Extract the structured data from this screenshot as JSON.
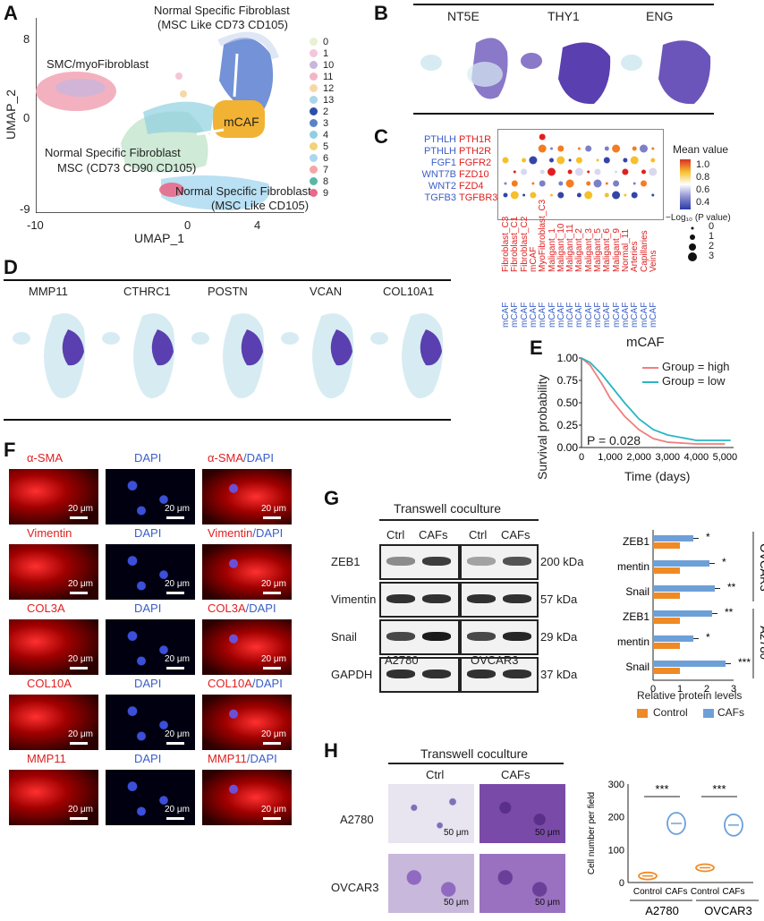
{
  "panels": {
    "A": "A",
    "B": "B",
    "C": "C",
    "D": "D",
    "E": "E",
    "F": "F",
    "G": "G",
    "H": "H"
  },
  "A": {
    "xlabel": "UMAP_1",
    "ylabel": "UMAP_2",
    "xticks": [
      "-10",
      "0",
      "4"
    ],
    "yticks": [
      "8",
      "0",
      "-9"
    ],
    "labels": {
      "smc": "SMC/myoFibroblast",
      "nsf1a": "Normal Specific Fibroblast",
      "nsf1b": "(MSC Like CD73 CD105)",
      "mcaf": "mCAF",
      "nsm1": "Normal Specific Fibroblast",
      "nsm2": "MSC (CD73 CD90 CD105)",
      "nsf3a": "Normal Specific Fibroblast",
      "nsf3b": "(MSC Like CD105)"
    },
    "legend": [
      "0",
      "1",
      "10",
      "11",
      "12",
      "13",
      "2",
      "3",
      "4",
      "5",
      "6",
      "7",
      "8",
      "9"
    ],
    "legend_colors": [
      "#e8f0d8",
      "#f4c6d8",
      "#c9b6dc",
      "#f2b6c6",
      "#f6d8a8",
      "#a9d6e8",
      "#2e4fa8",
      "#5b82c8",
      "#8fd0e0",
      "#f2d27a",
      "#a8d8f0",
      "#f4a6a6",
      "#58b8a8",
      "#e86a8a"
    ]
  },
  "B": {
    "genes": [
      "NT5E",
      "THY1",
      "ENG"
    ]
  },
  "C": {
    "ligands": [
      "PTHLH",
      "PTHLH",
      "FGF1",
      "WNT7B",
      "WNT2",
      "TGFB3"
    ],
    "receptors": [
      "PTH1R",
      "PTH2R",
      "FGFR2",
      "FZD10",
      "FZD4",
      "TGFBR3"
    ],
    "columns": [
      "Fibroblast_C3",
      "Fibroblast_C1",
      "Fibroblast_C2",
      "mCAF",
      "MyoFibroblast_C3",
      "Maligant_1",
      "Maligant_10",
      "Maligant_11",
      "Maligant_2",
      "Maligant_3",
      "Maligant_5",
      "Maligant_6",
      "Maligant_9",
      "Normal_11",
      "Arteries",
      "Capillaries",
      "Veins"
    ],
    "col_prefix": "mCAF",
    "legend_title": "Mean value",
    "legend_ticks": [
      "1.0",
      "0.8",
      "0.6",
      "0.4"
    ],
    "pval_title": "−Log₁₀ (P value)",
    "pval_ticks": [
      "0",
      "1",
      "2",
      "3"
    ]
  },
  "D": {
    "genes": [
      "MMP11",
      "CTHRC1",
      "POSTN",
      "VCAN",
      "COL10A1"
    ]
  },
  "E": {
    "title": "mCAF",
    "ylabel": "Survival probability",
    "xlabel": "Time (days)",
    "yticks": [
      "1.00",
      "0.75",
      "0.50",
      "0.25",
      "0.00"
    ],
    "xticks": [
      "0",
      "1,000",
      "2,000",
      "3,000",
      "4,000",
      "5,000"
    ],
    "legend_high": "Group = high",
    "legend_low": "Group = low",
    "pvalue": "P = 0.028",
    "colors": {
      "high": "#f07f7f",
      "low": "#2ab6c2"
    }
  },
  "F": {
    "rows": [
      {
        "marker": "α-SMA",
        "merge": "α-SMA"
      },
      {
        "marker": "Vimentin",
        "merge": "Vimentin"
      },
      {
        "marker": "COL3A",
        "merge": "COL3A"
      },
      {
        "marker": "COL10A",
        "merge": "COL10A"
      },
      {
        "marker": "MMP11",
        "merge": "MMP11"
      }
    ],
    "dapi": "DAPI",
    "slash_dapi": "/DAPI",
    "scale": "20 μm"
  },
  "G": {
    "title": "Transwell coculture",
    "cols": [
      "Ctrl",
      "CAFs",
      "Ctrl",
      "CAFs"
    ],
    "proteins": [
      "ZEB1",
      "Vimentin",
      "Snail",
      "GAPDH"
    ],
    "kda": [
      "200 kDa",
      "57 kDa",
      "29 kDa",
      "37 kDa"
    ],
    "cells": [
      "A2780",
      "OVCAR3"
    ]
  },
  "chart_data": [
    {
      "type": "bar",
      "orientation": "horizontal",
      "xlabel": "Relative protein levels",
      "xlim": [
        0,
        3
      ],
      "xticks": [
        "0",
        "1",
        "2",
        "3"
      ],
      "categories": [
        "ZEB1",
        "Vimentin",
        "Snail",
        "ZEB1",
        "Vimentin",
        "Snail"
      ],
      "groups": [
        "OVCAR3",
        "A2780"
      ],
      "series": [
        {
          "name": "Control",
          "values": [
            1,
            1,
            1,
            1,
            1,
            1
          ],
          "color": "#f08a24"
        },
        {
          "name": "CAFs",
          "values": [
            1.5,
            2.1,
            2.3,
            2.2,
            1.5,
            2.7
          ],
          "color": "#6ea0d8"
        }
      ],
      "significance": [
        "*",
        "*",
        "**",
        "**",
        "*",
        "***"
      ],
      "legend": "bottom"
    },
    {
      "type": "violin",
      "ylabel": "Cell number per field",
      "ylim": [
        0,
        300
      ],
      "yticks": [
        "0",
        "100",
        "200",
        "300"
      ],
      "categories": [
        "Control",
        "CAFs",
        "Control",
        "CAFs"
      ],
      "groups": [
        "A2780",
        "OVCAR3"
      ],
      "values": [
        20,
        180,
        45,
        175
      ],
      "colors": [
        "#f08a24",
        "#6ea0d8",
        "#f08a24",
        "#6ea0d8"
      ],
      "significance": [
        "***",
        "***"
      ]
    }
  ],
  "H": {
    "title": "Transwell coculture",
    "cols": [
      "Ctrl",
      "CAFs"
    ],
    "rows": [
      "A2780",
      "OVCAR3"
    ],
    "scale": "50 μm"
  }
}
